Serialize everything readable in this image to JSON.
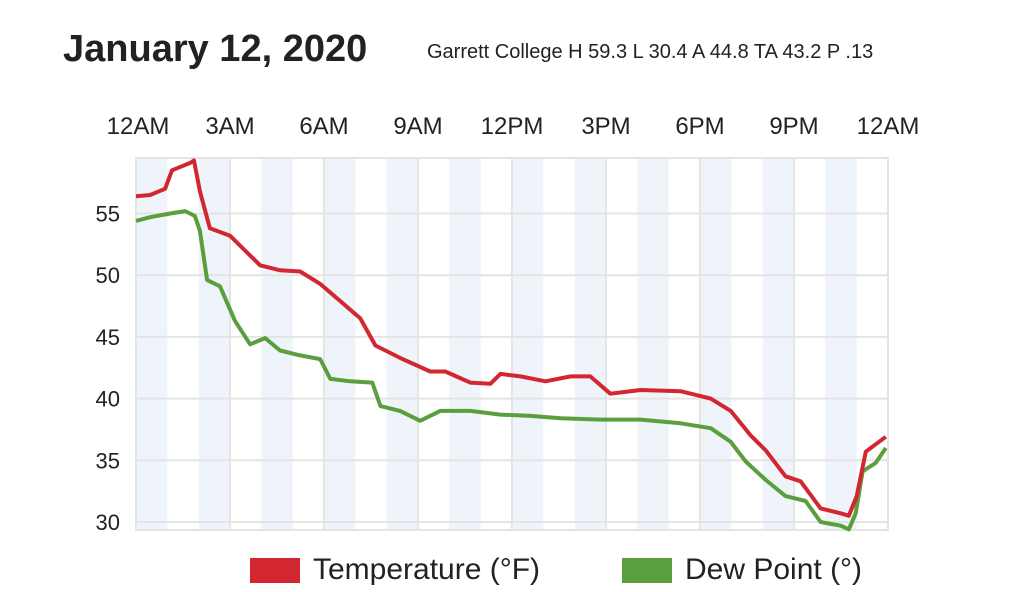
{
  "header": {
    "title": "January 12, 2020",
    "subtitle": "Garrett College  H 59.3 L 30.4 A 44.8 TA 43.2 P .13"
  },
  "chart_data": {
    "type": "line",
    "title": "January 12, 2020",
    "xlabel": "",
    "ylabel": "",
    "x_ticks": [
      {
        "h": 0,
        "label": "12AM"
      },
      {
        "h": 3,
        "label": "3AM"
      },
      {
        "h": 6,
        "label": "6AM"
      },
      {
        "h": 9,
        "label": "9AM"
      },
      {
        "h": 12,
        "label": "12PM"
      },
      {
        "h": 15,
        "label": "3PM"
      },
      {
        "h": 18,
        "label": "6PM"
      },
      {
        "h": 21,
        "label": "9PM"
      },
      {
        "h": 24,
        "label": "12AM"
      }
    ],
    "y_ticks": [
      30,
      35,
      40,
      45,
      50,
      55
    ],
    "xlim": [
      0,
      24
    ],
    "ylim": [
      29.35,
      59.5
    ],
    "grid": true,
    "shaded_hours": [
      0,
      2,
      4,
      6,
      8,
      10,
      12,
      14,
      16,
      18,
      20,
      22
    ],
    "legend_position": "bottom",
    "series": [
      {
        "name": "Temperature (°F)",
        "color": "#d22630",
        "x": [
          0,
          0.45,
          0.93,
          1.15,
          1.73,
          1.85,
          2.04,
          2.36,
          3.0,
          3.48,
          3.96,
          4.6,
          5.24,
          5.88,
          6.52,
          7.16,
          7.64,
          8.43,
          9.39,
          9.87,
          10.67,
          11.31,
          11.63,
          12.27,
          13.07,
          13.87,
          14.5,
          15.14,
          16.1,
          17.38,
          18.34,
          18.98,
          19.62,
          20.1,
          20.73,
          21.21,
          21.85,
          22.49,
          22.75,
          23.0,
          23.29,
          23.61,
          23.93
        ],
        "y": [
          56.4,
          56.5,
          57.0,
          58.5,
          59.1,
          59.3,
          56.8,
          53.8,
          53.2,
          52.0,
          50.8,
          50.4,
          50.3,
          49.3,
          47.9,
          46.5,
          44.3,
          43.3,
          42.2,
          42.2,
          41.3,
          41.2,
          42.0,
          41.8,
          41.4,
          41.8,
          41.8,
          40.4,
          40.7,
          40.6,
          40.0,
          39.0,
          37.0,
          35.8,
          33.7,
          33.3,
          31.1,
          30.7,
          30.5,
          32.1,
          35.7,
          36.3,
          36.9
        ]
      },
      {
        "name": "Dew Point (°)",
        "color": "#5a9e3e",
        "x": [
          0,
          0.45,
          1.09,
          1.57,
          1.88,
          2.04,
          2.27,
          2.68,
          3.16,
          3.64,
          4.12,
          4.6,
          5.24,
          5.88,
          6.2,
          6.84,
          7.54,
          7.8,
          8.43,
          9.07,
          9.71,
          10.67,
          11.63,
          12.59,
          13.55,
          14.82,
          16.1,
          17.38,
          18.34,
          18.98,
          19.46,
          20.1,
          20.73,
          21.37,
          21.85,
          22.49,
          22.75,
          22.97,
          23.19,
          23.61,
          23.93
        ],
        "y": [
          54.4,
          54.7,
          55.0,
          55.2,
          54.8,
          53.6,
          49.6,
          49.1,
          46.3,
          44.4,
          44.9,
          43.9,
          43.5,
          43.2,
          41.6,
          41.4,
          41.3,
          39.4,
          39.0,
          38.2,
          39.0,
          39.0,
          38.7,
          38.6,
          38.4,
          38.3,
          38.3,
          38.0,
          37.6,
          36.5,
          34.9,
          33.4,
          32.1,
          31.7,
          30.0,
          29.7,
          29.4,
          30.7,
          34.1,
          34.8,
          36.0
        ]
      }
    ]
  }
}
